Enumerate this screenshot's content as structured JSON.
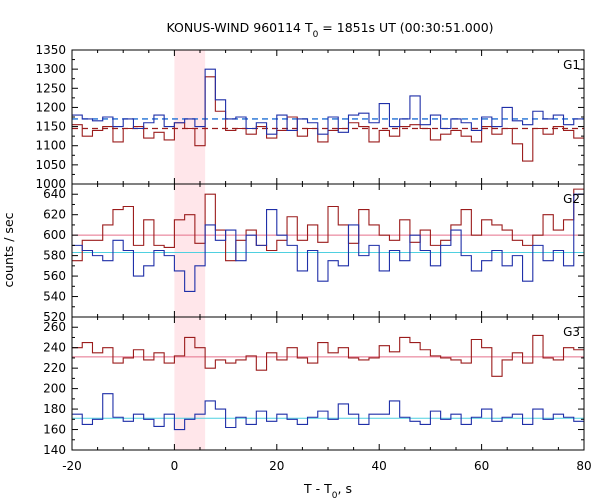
{
  "title_main": "KONUS-WIND 960114 T",
  "title_sub": "0",
  "title_rest": " = 1851s UT (00:30:51.000)",
  "xlabel_main": "T - T",
  "xlabel_sub": "0",
  "xlabel_rest": ", s",
  "ylabel": "counts / sec",
  "chart_data": {
    "type": "line",
    "bin_width_s": 2.0,
    "x_start": -20,
    "xlim": [
      -20,
      80
    ],
    "x_ticks": [
      "-20",
      "0",
      "20",
      "40",
      "60",
      "80"
    ],
    "highlight_interval": [
      0,
      6
    ],
    "colors": {
      "raw": "#9b1c1c",
      "raw_bg": "#e56f8a",
      "bin": "#1f2fa8",
      "bin_bg": "#4fd0e0",
      "bin_bg_dash": "#1e6fd4",
      "highlight": "#ffe6ea"
    },
    "panels": [
      {
        "name": "G1",
        "ylim": [
          1000,
          1350
        ],
        "y_ticks": [
          "1000",
          "1050",
          "1100",
          "1150",
          "1200",
          "1250",
          "1300",
          "1350"
        ],
        "background_levels": {
          "raw": 1145,
          "bin": 1170
        },
        "background_style": "dashed",
        "series": [
          {
            "key": "raw",
            "values": [
              1155,
              1125,
              1140,
              1150,
              1110,
              1145,
              1150,
              1120,
              1135,
              1115,
              1160,
              1145,
              1100,
              1280,
              1190,
              1140,
              1145,
              1130,
              1150,
              1120,
              1140,
              1175,
              1125,
              1145,
              1110,
              1140,
              1145,
              1160,
              1150,
              1110,
              1140,
              1125,
              1150,
              1155,
              1145,
              1115,
              1130,
              1140,
              1125,
              1110,
              1150,
              1130,
              1145,
              1105,
              1060,
              1145,
              1130,
              1150,
              1140,
              1120
            ]
          },
          {
            "key": "bin",
            "values": [
              1180,
              1170,
              1165,
              1175,
              1150,
              1170,
              1145,
              1160,
              1180,
              1150,
              1160,
              1170,
              1150,
              1300,
              1220,
              1170,
              1175,
              1145,
              1160,
              1130,
              1180,
              1140,
              1170,
              1160,
              1130,
              1175,
              1135,
              1180,
              1185,
              1160,
              1210,
              1150,
              1170,
              1230,
              1155,
              1180,
              1145,
              1170,
              1160,
              1140,
              1175,
              1150,
              1200,
              1165,
              1155,
              1190,
              1170,
              1180,
              1155,
              1170
            ]
          }
        ]
      },
      {
        "name": "G2",
        "ylim": [
          520,
          650
        ],
        "y_ticks": [
          "520",
          "540",
          "560",
          "580",
          "600",
          "620",
          "640"
        ],
        "background_levels": {
          "raw": 600,
          "bin": 583
        },
        "background_style": "solid",
        "series": [
          {
            "key": "raw",
            "values": [
              575,
              595,
              595,
              610,
              625,
              628,
              590,
              615,
              590,
              588,
              615,
              620,
              592,
              640,
              605,
              575,
              595,
              605,
              590,
              585,
              595,
              618,
              595,
              610,
              593,
              628,
              610,
              592,
              625,
              610,
              600,
              595,
              615,
              593,
              605,
              590,
              595,
              610,
              625,
              600,
              615,
              610,
              605,
              595,
              590,
              600,
              620,
              605,
              615,
              645
            ]
          },
          {
            "key": "bin",
            "values": [
              590,
              585,
              580,
              575,
              595,
              585,
              560,
              570,
              585,
              580,
              565,
              545,
              570,
              610,
              595,
              605,
              575,
              600,
              590,
              625,
              600,
              590,
              565,
              585,
              555,
              575,
              570,
              610,
              580,
              590,
              565,
              585,
              575,
              600,
              585,
              570,
              590,
              605,
              580,
              565,
              575,
              585,
              570,
              580,
              555,
              590,
              575,
              585,
              570,
              640
            ]
          }
        ]
      },
      {
        "name": "G3",
        "ylim": [
          140,
          270
        ],
        "y_ticks": [
          "140",
          "160",
          "180",
          "200",
          "220",
          "240",
          "260"
        ],
        "background_levels": {
          "raw": 231,
          "bin": 171
        },
        "background_style": "solid",
        "series": [
          {
            "key": "raw",
            "values": [
              240,
              245,
              235,
              240,
              225,
              230,
              238,
              228,
              235,
              225,
              232,
              250,
              240,
              220,
              228,
              225,
              228,
              232,
              218,
              235,
              228,
              240,
              230,
              225,
              245,
              235,
              240,
              230,
              228,
              230,
              242,
              236,
              250,
              245,
              238,
              232,
              230,
              228,
              225,
              248,
              240,
              212,
              228,
              235,
              225,
              252,
              230,
              228,
              240,
              238
            ]
          },
          {
            "key": "bin",
            "values": [
              175,
              165,
              170,
              195,
              172,
              168,
              175,
              170,
              163,
              175,
              160,
              170,
              175,
              188,
              180,
              162,
              172,
              165,
              178,
              168,
              175,
              170,
              165,
              172,
              178,
              170,
              185,
              175,
              165,
              175,
              175,
              188,
              172,
              168,
              165,
              178,
              170,
              175,
              165,
              172,
              180,
              168,
              172,
              175,
              165,
              180,
              170,
              175,
              172,
              168
            ]
          }
        ]
      }
    ]
  }
}
